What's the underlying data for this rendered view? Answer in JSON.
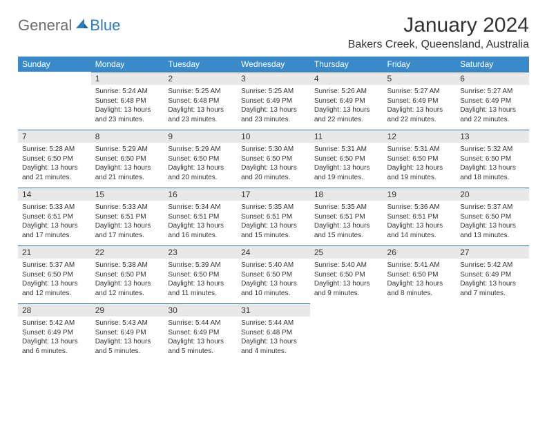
{
  "logo": {
    "text_gray": "General",
    "text_blue": "Blue",
    "icon_color": "#2b7bbf"
  },
  "header": {
    "title": "January 2024",
    "location": "Bakers Creek, Queensland, Australia"
  },
  "colors": {
    "header_bg": "#3a8ac9",
    "header_text": "#ffffff",
    "daynum_bg": "#e8e8e8",
    "daynum_border": "#2f6fa6",
    "body_text": "#333333"
  },
  "weekdays": [
    "Sunday",
    "Monday",
    "Tuesday",
    "Wednesday",
    "Thursday",
    "Friday",
    "Saturday"
  ],
  "weeks": [
    [
      null,
      {
        "n": "1",
        "sr": "5:24 AM",
        "ss": "6:48 PM",
        "dl": "13 hours and 23 minutes."
      },
      {
        "n": "2",
        "sr": "5:25 AM",
        "ss": "6:48 PM",
        "dl": "13 hours and 23 minutes."
      },
      {
        "n": "3",
        "sr": "5:25 AM",
        "ss": "6:49 PM",
        "dl": "13 hours and 23 minutes."
      },
      {
        "n": "4",
        "sr": "5:26 AM",
        "ss": "6:49 PM",
        "dl": "13 hours and 22 minutes."
      },
      {
        "n": "5",
        "sr": "5:27 AM",
        "ss": "6:49 PM",
        "dl": "13 hours and 22 minutes."
      },
      {
        "n": "6",
        "sr": "5:27 AM",
        "ss": "6:49 PM",
        "dl": "13 hours and 22 minutes."
      }
    ],
    [
      {
        "n": "7",
        "sr": "5:28 AM",
        "ss": "6:50 PM",
        "dl": "13 hours and 21 minutes."
      },
      {
        "n": "8",
        "sr": "5:29 AM",
        "ss": "6:50 PM",
        "dl": "13 hours and 21 minutes."
      },
      {
        "n": "9",
        "sr": "5:29 AM",
        "ss": "6:50 PM",
        "dl": "13 hours and 20 minutes."
      },
      {
        "n": "10",
        "sr": "5:30 AM",
        "ss": "6:50 PM",
        "dl": "13 hours and 20 minutes."
      },
      {
        "n": "11",
        "sr": "5:31 AM",
        "ss": "6:50 PM",
        "dl": "13 hours and 19 minutes."
      },
      {
        "n": "12",
        "sr": "5:31 AM",
        "ss": "6:50 PM",
        "dl": "13 hours and 19 minutes."
      },
      {
        "n": "13",
        "sr": "5:32 AM",
        "ss": "6:50 PM",
        "dl": "13 hours and 18 minutes."
      }
    ],
    [
      {
        "n": "14",
        "sr": "5:33 AM",
        "ss": "6:51 PM",
        "dl": "13 hours and 17 minutes."
      },
      {
        "n": "15",
        "sr": "5:33 AM",
        "ss": "6:51 PM",
        "dl": "13 hours and 17 minutes."
      },
      {
        "n": "16",
        "sr": "5:34 AM",
        "ss": "6:51 PM",
        "dl": "13 hours and 16 minutes."
      },
      {
        "n": "17",
        "sr": "5:35 AM",
        "ss": "6:51 PM",
        "dl": "13 hours and 15 minutes."
      },
      {
        "n": "18",
        "sr": "5:35 AM",
        "ss": "6:51 PM",
        "dl": "13 hours and 15 minutes."
      },
      {
        "n": "19",
        "sr": "5:36 AM",
        "ss": "6:51 PM",
        "dl": "13 hours and 14 minutes."
      },
      {
        "n": "20",
        "sr": "5:37 AM",
        "ss": "6:50 PM",
        "dl": "13 hours and 13 minutes."
      }
    ],
    [
      {
        "n": "21",
        "sr": "5:37 AM",
        "ss": "6:50 PM",
        "dl": "13 hours and 12 minutes."
      },
      {
        "n": "22",
        "sr": "5:38 AM",
        "ss": "6:50 PM",
        "dl": "13 hours and 12 minutes."
      },
      {
        "n": "23",
        "sr": "5:39 AM",
        "ss": "6:50 PM",
        "dl": "13 hours and 11 minutes."
      },
      {
        "n": "24",
        "sr": "5:40 AM",
        "ss": "6:50 PM",
        "dl": "13 hours and 10 minutes."
      },
      {
        "n": "25",
        "sr": "5:40 AM",
        "ss": "6:50 PM",
        "dl": "13 hours and 9 minutes."
      },
      {
        "n": "26",
        "sr": "5:41 AM",
        "ss": "6:50 PM",
        "dl": "13 hours and 8 minutes."
      },
      {
        "n": "27",
        "sr": "5:42 AM",
        "ss": "6:49 PM",
        "dl": "13 hours and 7 minutes."
      }
    ],
    [
      {
        "n": "28",
        "sr": "5:42 AM",
        "ss": "6:49 PM",
        "dl": "13 hours and 6 minutes."
      },
      {
        "n": "29",
        "sr": "5:43 AM",
        "ss": "6:49 PM",
        "dl": "13 hours and 5 minutes."
      },
      {
        "n": "30",
        "sr": "5:44 AM",
        "ss": "6:49 PM",
        "dl": "13 hours and 5 minutes."
      },
      {
        "n": "31",
        "sr": "5:44 AM",
        "ss": "6:48 PM",
        "dl": "13 hours and 4 minutes."
      },
      null,
      null,
      null
    ]
  ],
  "labels": {
    "sunrise": "Sunrise:",
    "sunset": "Sunset:",
    "daylight": "Daylight:"
  }
}
